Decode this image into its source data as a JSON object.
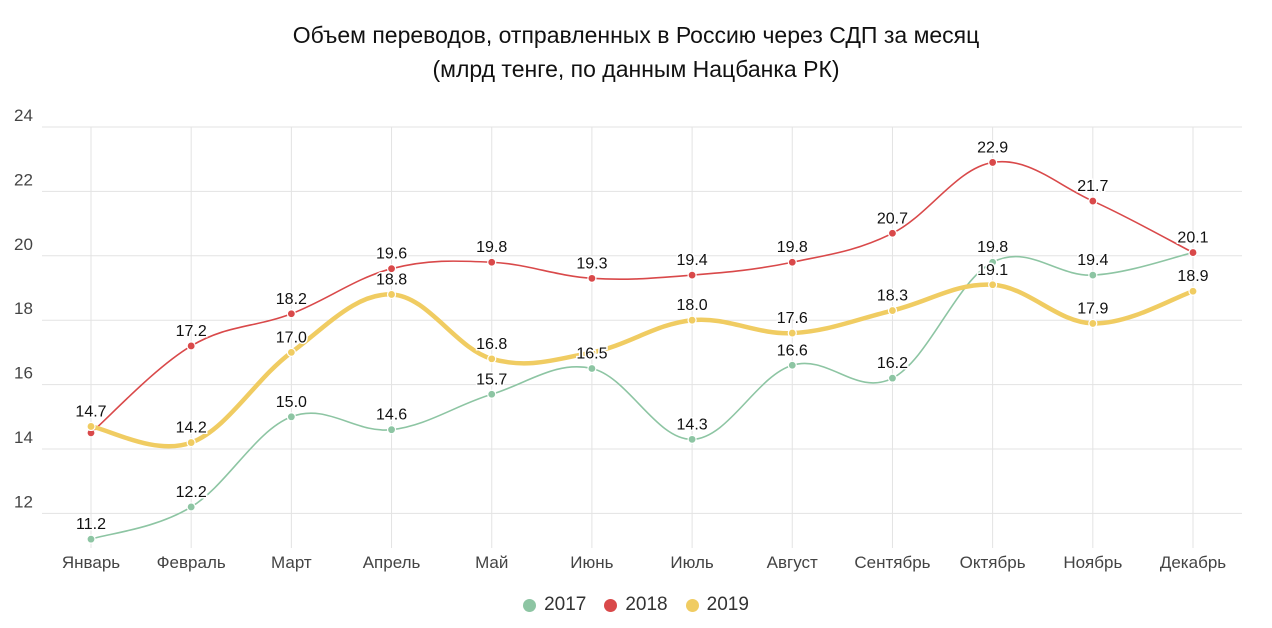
{
  "title_line1": "Объем переводов, отправленных в Россию через СДП за месяц",
  "title_line2": "(млрд тенге, по данным Нацбанка РК)",
  "chart_data": {
    "type": "line",
    "categories": [
      "Январь",
      "Февраль",
      "Март",
      "Апрель",
      "Май",
      "Июнь",
      "Июль",
      "Август",
      "Сентябрь",
      "Октябрь",
      "Ноябрь",
      "Декабрь"
    ],
    "series": [
      {
        "name": "2017",
        "color": "#8dc5a3",
        "values": [
          11.2,
          12.2,
          15.0,
          14.6,
          15.7,
          16.5,
          14.3,
          16.6,
          16.2,
          19.8,
          19.4,
          20.1
        ]
      },
      {
        "name": "2018",
        "color": "#d9494a",
        "values": [
          14.5,
          17.2,
          18.2,
          19.6,
          19.8,
          19.3,
          19.4,
          19.8,
          20.7,
          22.9,
          21.7,
          20.1
        ]
      },
      {
        "name": "2019",
        "color": "#f0cc62",
        "values": [
          14.7,
          14.2,
          17.0,
          18.8,
          16.8,
          17.0,
          18.0,
          17.6,
          18.3,
          19.1,
          17.9,
          18.9
        ]
      }
    ],
    "data_labels": [
      {
        "series": 0,
        "index": 0,
        "text": "11.2"
      },
      {
        "series": 0,
        "index": 1,
        "text": "12.2"
      },
      {
        "series": 0,
        "index": 2,
        "text": "15.0"
      },
      {
        "series": 0,
        "index": 3,
        "text": "14.6"
      },
      {
        "series": 0,
        "index": 4,
        "text": "15.7"
      },
      {
        "series": 0,
        "index": 5,
        "text": "16.5"
      },
      {
        "series": 0,
        "index": 6,
        "text": "14.3"
      },
      {
        "series": 0,
        "index": 7,
        "text": "16.6"
      },
      {
        "series": 0,
        "index": 8,
        "text": "16.2"
      },
      {
        "series": 0,
        "index": 9,
        "text": "19.8"
      },
      {
        "series": 0,
        "index": 10,
        "text": "19.4"
      },
      {
        "series": 1,
        "index": 1,
        "text": "17.2"
      },
      {
        "series": 1,
        "index": 2,
        "text": "18.2"
      },
      {
        "series": 1,
        "index": 3,
        "text": "19.6"
      },
      {
        "series": 1,
        "index": 4,
        "text": "19.8"
      },
      {
        "series": 1,
        "index": 5,
        "text": "19.3"
      },
      {
        "series": 1,
        "index": 6,
        "text": "19.4"
      },
      {
        "series": 1,
        "index": 7,
        "text": "19.8"
      },
      {
        "series": 1,
        "index": 8,
        "text": "20.7"
      },
      {
        "series": 1,
        "index": 9,
        "text": "22.9"
      },
      {
        "series": 1,
        "index": 10,
        "text": "21.7"
      },
      {
        "series": 1,
        "index": 11,
        "text": "20.1"
      },
      {
        "series": 2,
        "index": 0,
        "text": "14.7"
      },
      {
        "series": 2,
        "index": 1,
        "text": "14.2"
      },
      {
        "series": 2,
        "index": 2,
        "text": "17.0"
      },
      {
        "series": 2,
        "index": 3,
        "text": "18.8"
      },
      {
        "series": 2,
        "index": 4,
        "text": "16.8"
      },
      {
        "series": 2,
        "index": 6,
        "text": "18.0"
      },
      {
        "series": 2,
        "index": 7,
        "text": "17.6"
      },
      {
        "series": 2,
        "index": 8,
        "text": "18.3"
      },
      {
        "series": 2,
        "index": 9,
        "text": "19.1"
      },
      {
        "series": 2,
        "index": 10,
        "text": "17.9"
      },
      {
        "series": 2,
        "index": 11,
        "text": "18.9"
      }
    ],
    "y_ticks": [
      12,
      14,
      16,
      18,
      20,
      22,
      24
    ],
    "ylim": [
      11,
      24
    ],
    "grid": true,
    "legend_position": "bottom-center",
    "line_style": "smooth"
  }
}
